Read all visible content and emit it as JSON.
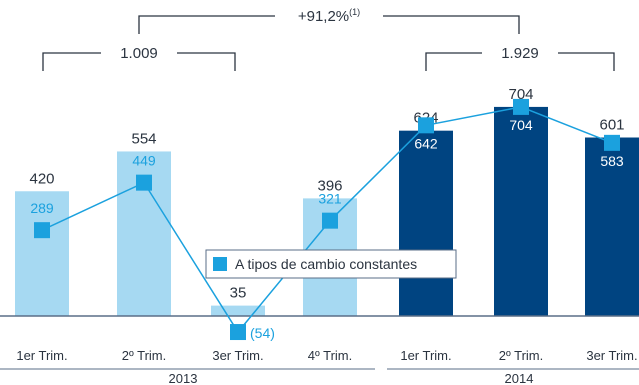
{
  "chart_data": {
    "type": "bar",
    "categories": [
      "1er Trim.",
      "2º Trim.",
      "3er Trim.",
      "4º Trim.",
      "1er Trim.",
      "2º Trim.",
      "3er Trim."
    ],
    "x_groups": [
      {
        "label": "2013",
        "categories": [
          "1er Trim.",
          "2º Trim.",
          "3er Trim.",
          "4º Trim."
        ]
      },
      {
        "label": "2014",
        "categories": [
          "1er Trim.",
          "2º Trim.",
          "3er Trim."
        ]
      }
    ],
    "series": [
      {
        "type": "bar",
        "values": [
          420,
          554,
          35,
          396,
          624,
          704,
          601
        ],
        "value_labels": [
          "420",
          "554",
          "35",
          "396",
          "624",
          "704",
          "601"
        ],
        "colors": [
          "#a6d9f2",
          "#a6d9f2",
          "#a6d9f2",
          "#a6d9f2",
          "#004481",
          "#004481",
          "#004481"
        ]
      },
      {
        "name": "A tipos de cambio constantes",
        "type": "line",
        "values": [
          289,
          449,
          -54,
          321,
          642,
          704,
          583
        ],
        "value_labels": [
          "289",
          "449",
          "(54)",
          "321",
          "642",
          "704",
          "583"
        ],
        "color": "#1ba1de"
      }
    ],
    "brackets": [
      {
        "label": "1.009",
        "from": 0,
        "to": 2
      },
      {
        "label": "1.929",
        "from": 4,
        "to": 6
      },
      {
        "label": "+91,2%",
        "superscript": "(1)",
        "from": 1,
        "to": 5
      }
    ],
    "legend": {
      "position": "center",
      "entries": [
        "A tipos de cambio constantes"
      ]
    },
    "ylim": [
      -60,
      760
    ],
    "grid": false
  }
}
